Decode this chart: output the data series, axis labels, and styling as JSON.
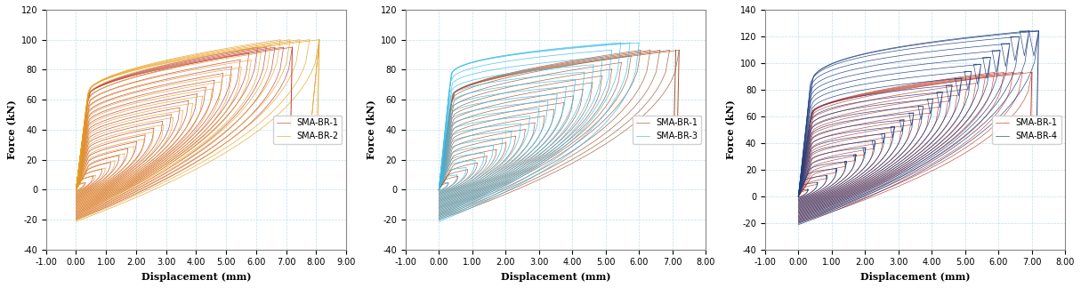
{
  "plots": [
    {
      "title": "",
      "xlabel": "Displacement (mm)",
      "ylabel": "Force (kN)",
      "xlim": [
        -1.0,
        9.0
      ],
      "ylim": [
        -40,
        120
      ],
      "yticks": [
        -40,
        -20,
        0,
        20,
        40,
        60,
        80,
        100,
        120
      ],
      "xticks": [
        -1.0,
        0.0,
        1.0,
        2.0,
        3.0,
        4.0,
        5.0,
        6.0,
        7.0,
        8.0,
        9.0
      ],
      "series": [
        {
          "label": "SMA-BR-2",
          "color": "#E8A020",
          "line_color": "#E8A020"
        },
        {
          "label": "SMA-BR-1",
          "color": "#C0392B",
          "line_color": "#C0392B"
        }
      ],
      "num_cycles": 25,
      "max_disp_br1": 7.2,
      "max_disp_br2": 8.1,
      "max_force_br1": 95,
      "max_force_br2": 100
    },
    {
      "title": "",
      "xlabel": "Displacement (mm)",
      "ylabel": "Force (kN)",
      "xlim": [
        -1.0,
        8.0
      ],
      "ylim": [
        -40,
        120
      ],
      "yticks": [
        -40,
        -20,
        0,
        20,
        40,
        60,
        80,
        100,
        120
      ],
      "xticks": [
        -1.0,
        0.0,
        1.0,
        2.0,
        3.0,
        4.0,
        5.0,
        6.0,
        7.0,
        8.0
      ],
      "series": [
        {
          "label": "SMA-BR-3",
          "color": "#3BBCE8",
          "line_color": "#3BBCE8"
        },
        {
          "label": "SMA-BR-1",
          "color": "#A0522D",
          "line_color": "#A0522D"
        }
      ],
      "num_cycles": 25,
      "max_disp_br1": 7.2,
      "max_disp_br3": 6.0,
      "max_force_br1": 93,
      "max_force_br3": 98
    },
    {
      "title": "",
      "xlabel": "Displacement (mm)",
      "ylabel": "Force (kN)",
      "xlim": [
        -1.0,
        8.0
      ],
      "ylim": [
        -40,
        140
      ],
      "yticks": [
        -40,
        -20,
        0,
        20,
        40,
        60,
        80,
        100,
        120,
        140
      ],
      "xticks": [
        -1.0,
        0.0,
        1.0,
        2.0,
        3.0,
        4.0,
        5.0,
        6.0,
        7.0,
        8.0
      ],
      "series": [
        {
          "label": "SMA-BR-4",
          "color": "#1F3F7F",
          "line_color": "#1F3F7F"
        },
        {
          "label": "SMA-BR-1",
          "color": "#C0392B",
          "line_color": "#C0392B"
        }
      ],
      "num_cycles": 25,
      "max_disp_br1": 7.0,
      "max_disp_br4": 7.2,
      "max_force_br1": 93,
      "max_force_br4": 124
    }
  ],
  "bg_color": "#FFFFFF",
  "grid_color": "#ADD8E6",
  "grid_style": "--",
  "font_family": "serif"
}
